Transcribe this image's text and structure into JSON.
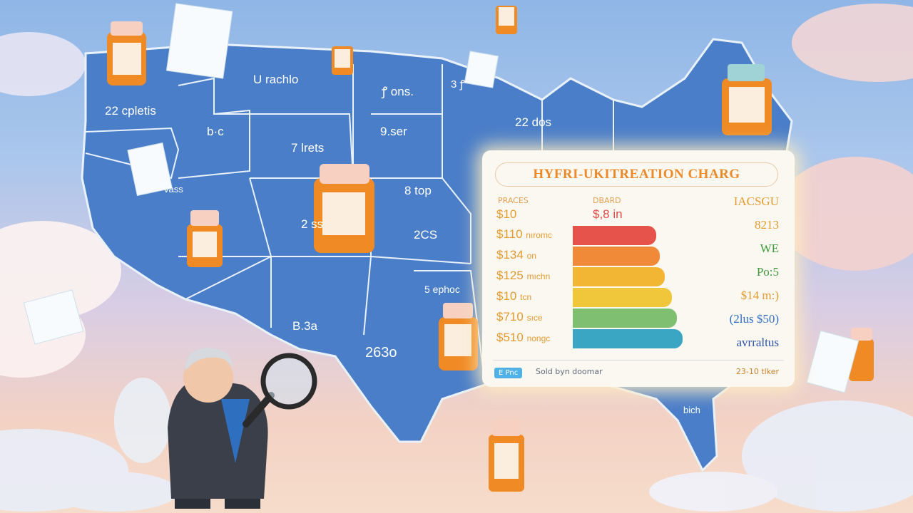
{
  "map": {
    "labels": [
      "U rachlo",
      "22 cpletis",
      "ꝭ ons.",
      "9.ser",
      "7 lrets",
      "b·c",
      "8 top",
      "2 ss",
      "2CS",
      "vass",
      "5 ephoc",
      "B.3a",
      "263o",
      "22 dos",
      "bich",
      "3 ꝭ"
    ]
  },
  "chart_card": {
    "title": "HYFRI-UKITREATION CHARG",
    "col_headers": {
      "prices": "PRACES",
      "board": "DBARD"
    },
    "top_values": {
      "price": "$10",
      "board": "$,8 in"
    },
    "rows": [
      {
        "label": "$110",
        "suffix": "nıromc",
        "level": 0.76,
        "color": "#e5534b"
      },
      {
        "label": "$134",
        "suffix": "on",
        "level": 0.79,
        "color": "#f08a38"
      },
      {
        "label": "$125",
        "suffix": "mıchn",
        "level": 0.84,
        "color": "#f2b634"
      },
      {
        "label": "$10",
        "suffix": "tcn",
        "level": 0.9,
        "color": "#f0c73a"
      },
      {
        "label": "$710",
        "suffix": "sıce",
        "level": 0.95,
        "color": "#7fbf72"
      },
      {
        "label": "$510",
        "suffix": "nongc",
        "level": 1.0,
        "color": "#3aa6c4"
      }
    ],
    "right_labels": [
      {
        "text": "IACSGU",
        "color": "#e59a2c"
      },
      {
        "text": "8213",
        "color": "#e59a2c"
      },
      {
        "text": "WE",
        "color": "#3f9a3c"
      },
      {
        "text": "Po:5",
        "color": "#3f9a3c"
      },
      {
        "text": "$14 m:)",
        "color": "#e59a2c"
      },
      {
        "text": "(2lus $50)",
        "color": "#2f6ec4"
      },
      {
        "text": "avrraltus",
        "color": "#2b52a8"
      }
    ],
    "footer": {
      "badge": "E Pnc",
      "source": "Sold byn doomar",
      "note": "23-10 tlker"
    }
  }
}
